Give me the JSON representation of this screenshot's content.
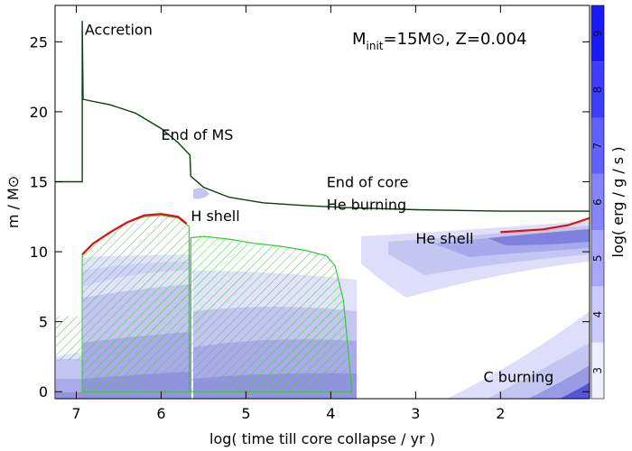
{
  "chart_data": {
    "type": "kippenhahn",
    "xlabel": "log( time till core collapse / yr )",
    "ylabel": "m / M⊙",
    "x_range": [
      7.25,
      0.95
    ],
    "y_range": [
      -0.5,
      27.6
    ],
    "xticks": [
      7,
      6,
      5,
      4,
      3,
      2
    ],
    "yticks": [
      0,
      5,
      10,
      15,
      20,
      25
    ],
    "title": {
      "main": "M",
      "sub": "init",
      "rest": "=15M⊙,  Z=0.004"
    },
    "annotations": [
      {
        "text": "Accretion",
        "x": 6.9,
        "y": 25.5
      },
      {
        "text": "End of MS",
        "x": 6.0,
        "y": 18.0
      },
      {
        "text": "End of core",
        "x": 4.05,
        "y": 14.6
      },
      {
        "text": "He burning",
        "x": 4.05,
        "y": 13.0
      },
      {
        "text": "H shell",
        "x": 5.65,
        "y": 12.2
      },
      {
        "text": "He shell",
        "x": 3.0,
        "y": 10.6
      },
      {
        "text": "C burning",
        "x": 2.2,
        "y": 0.7
      }
    ],
    "colorbar": {
      "label": "log( erg / g / s )",
      "ticks": [
        3,
        4,
        5,
        6,
        7,
        8,
        9
      ],
      "range": [
        2.5,
        9.5
      ],
      "low_color": "#eeeeff",
      "high_color": "#1a1aff"
    },
    "series": [
      {
        "name": "total_mass",
        "color": "#0a3d0a",
        "points": [
          [
            7.25,
            15.0
          ],
          [
            6.93,
            15.0
          ],
          [
            6.93,
            26.5
          ],
          [
            6.92,
            20.9
          ],
          [
            6.85,
            20.8
          ],
          [
            6.6,
            20.5
          ],
          [
            6.3,
            19.9
          ],
          [
            6.0,
            18.8
          ],
          [
            5.8,
            17.8
          ],
          [
            5.66,
            16.9
          ],
          [
            5.65,
            15.4
          ],
          [
            5.5,
            14.6
          ],
          [
            5.2,
            13.9
          ],
          [
            4.8,
            13.5
          ],
          [
            4.3,
            13.3
          ],
          [
            3.8,
            13.15
          ],
          [
            3.0,
            13.0
          ],
          [
            2.0,
            12.9
          ],
          [
            0.95,
            12.9
          ]
        ]
      },
      {
        "name": "convective_core",
        "color": "#33cc33",
        "points": [
          [
            6.93,
            0
          ],
          [
            6.93,
            9.8
          ],
          [
            6.8,
            10.6
          ],
          [
            6.6,
            11.4
          ],
          [
            6.4,
            12.1
          ],
          [
            6.2,
            12.5
          ],
          [
            6.0,
            12.6
          ],
          [
            5.8,
            12.4
          ],
          [
            5.67,
            11.8
          ],
          [
            5.67,
            0
          ],
          [
            5.65,
            0
          ],
          [
            5.65,
            11.0
          ],
          [
            5.5,
            11.1
          ],
          [
            5.2,
            10.9
          ],
          [
            4.9,
            10.6
          ],
          [
            4.6,
            10.4
          ],
          [
            4.3,
            10.1
          ],
          [
            4.05,
            9.7
          ],
          [
            3.95,
            9.0
          ],
          [
            3.85,
            6.5
          ],
          [
            3.75,
            0
          ]
        ]
      },
      {
        "name": "h_shell_edge",
        "color": "#dd1111",
        "points": [
          [
            6.93,
            9.8
          ],
          [
            6.8,
            10.6
          ],
          [
            6.6,
            11.4
          ],
          [
            6.4,
            12.1
          ],
          [
            6.2,
            12.6
          ],
          [
            6.0,
            12.7
          ],
          [
            5.8,
            12.5
          ],
          [
            5.7,
            12.0
          ]
        ]
      },
      {
        "name": "he_shell_flame",
        "color": "#dd1111",
        "points": [
          [
            2.0,
            11.4
          ],
          [
            1.5,
            11.6
          ],
          [
            1.2,
            11.9
          ],
          [
            0.95,
            12.4
          ]
        ]
      }
    ]
  }
}
